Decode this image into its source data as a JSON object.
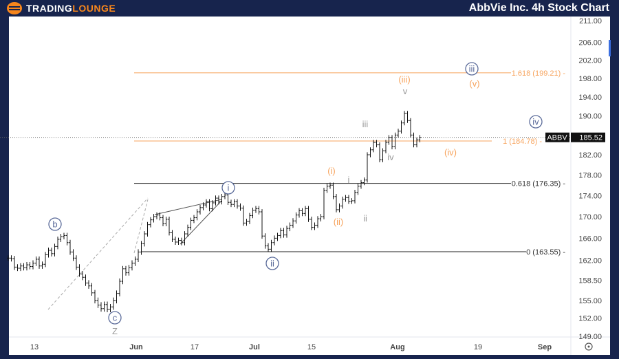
{
  "header": {
    "brand_part1": "TradingLounge",
    "title": "AbbVie Inc. 4h Stock Chart"
  },
  "colors": {
    "frame": "#17244d",
    "accent": "#f7861c",
    "fib_orange": "#f7a35c",
    "wave_circle": "#5b6b9a",
    "bars": "#111111"
  },
  "price_axis": {
    "ticks": [
      "211.00",
      "206.00",
      "202.00",
      "198.00",
      "194.00",
      "190.00",
      "182.00",
      "178.00",
      "174.00",
      "170.00",
      "166.00",
      "162.00",
      "158.50",
      "155.00",
      "152.00",
      "149.00"
    ],
    "scale": "log"
  },
  "time_axis": {
    "ticks": [
      "13",
      "Jun",
      "17",
      "Jul",
      "15",
      "Aug",
      "19",
      "Sep"
    ]
  },
  "settings_icon": "gear-icon",
  "chart_data": {
    "type": "ohlc",
    "symbol": "ABBV",
    "last_price": "185.52",
    "ylim": [
      149,
      211
    ],
    "closes": [
      162.4,
      162.3,
      160.8,
      160.6,
      161.0,
      160.7,
      161.2,
      160.9,
      161.5,
      162.2,
      161.0,
      161.3,
      163.0,
      163.8,
      163.2,
      164.5,
      165.8,
      166.3,
      166.5,
      165.2,
      163.5,
      162.4,
      160.8,
      159.6,
      159.0,
      158.0,
      157.5,
      156.3,
      155.0,
      154.2,
      153.6,
      154.3,
      153.5,
      153.9,
      155.0,
      156.2,
      158.3,
      160.5,
      159.8,
      160.7,
      161.5,
      162.2,
      163.5,
      165.0,
      166.8,
      168.5,
      169.4,
      170.0,
      170.3,
      169.8,
      168.7,
      169.5,
      167.0,
      165.8,
      165.3,
      165.6,
      165.2,
      166.8,
      168.0,
      169.3,
      169.8,
      170.9,
      171.7,
      172.2,
      172.8,
      171.5,
      172.6,
      173.5,
      172.8,
      173.8,
      174.1,
      172.7,
      172.3,
      172.8,
      172.0,
      171.6,
      168.8,
      169.1,
      170.2,
      171.2,
      171.5,
      170.9,
      166.4,
      164.6,
      164.0,
      165.2,
      166.0,
      166.5,
      167.4,
      166.6,
      167.8,
      168.4,
      169.2,
      170.3,
      171.1,
      170.6,
      171.5,
      169.5,
      168.0,
      168.4,
      169.6,
      170.0,
      175.0,
      175.8,
      176.0,
      173.8,
      171.3,
      172.0,
      173.3,
      173.6,
      172.9,
      173.0,
      174.6,
      175.8,
      176.5,
      177.0,
      182.0,
      183.0,
      184.5,
      184.0,
      181.0,
      182.8,
      184.5,
      185.5,
      183.6,
      186.0,
      186.8,
      188.5,
      190.5,
      189.0,
      186.0,
      184.0,
      185.0,
      185.52
    ],
    "fib_levels": [
      {
        "label": "1.618 (199.21)",
        "price": 199.21,
        "color": "orange"
      },
      {
        "label": "1 (184.78)",
        "price": 184.78,
        "color": "orange"
      },
      {
        "label": "0.618 (176.35)",
        "price": 176.35,
        "color": "black"
      },
      {
        "label": "0 (163.55)",
        "price": 163.55,
        "color": "black"
      }
    ],
    "wave_labels": {
      "circled": [
        "b",
        "c",
        "i",
        "ii",
        "iii",
        "iv"
      ],
      "orange": [
        "(i)",
        "(ii)",
        "(iii)",
        "(iv)",
        "(v)"
      ],
      "gray": [
        "i",
        "ii",
        "iii",
        "iv",
        "v",
        "Z"
      ]
    }
  }
}
